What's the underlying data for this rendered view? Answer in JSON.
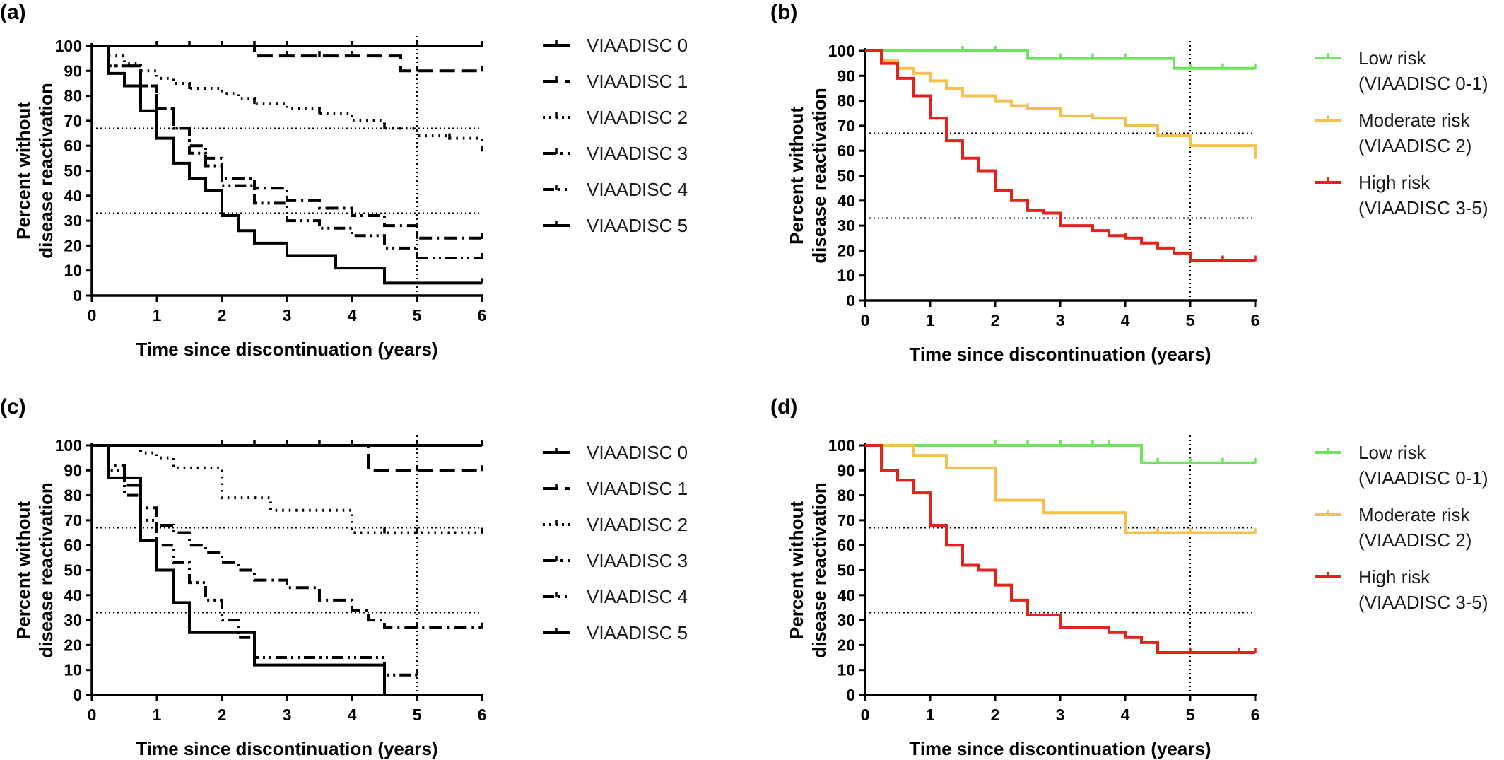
{
  "chart_data": [
    {
      "panel": "(a)",
      "type": "line",
      "style": "step",
      "xlabel": "Time since discontinuation (years)",
      "ylabel": [
        "Percent without",
        "disease reactivation"
      ],
      "xlim": [
        0,
        6
      ],
      "ylim": [
        0,
        100
      ],
      "xticks": [
        "0",
        "1",
        "2",
        "3",
        "4",
        "5",
        "6"
      ],
      "yticks": [
        "0",
        "10",
        "20",
        "30",
        "40",
        "50",
        "60",
        "70",
        "80",
        "90",
        "100"
      ],
      "reference_lines": {
        "horizontal": [
          67,
          33
        ],
        "vertical": [
          5
        ]
      },
      "grid": false,
      "legend": "right",
      "series": [
        {
          "name": "VIAADISC 0",
          "color": "#000000",
          "dash": "solid",
          "x": [
            0,
            6
          ],
          "y": [
            100,
            100
          ],
          "censor_x": [
            2.0,
            2.5,
            3.0,
            4.0,
            5.0,
            6.0
          ]
        },
        {
          "name": "VIAADISC 1",
          "color": "#000000",
          "dash": "dashed",
          "x": [
            0,
            2.5,
            4.75,
            6
          ],
          "y": [
            100,
            96,
            90,
            90
          ],
          "censor_x": [
            1.0,
            1.5,
            2.0,
            3.0,
            3.5,
            4.0,
            5.0,
            6.0
          ]
        },
        {
          "name": "VIAADISC 2",
          "color": "#000000",
          "dash": "dotted",
          "x": [
            0,
            0.25,
            0.5,
            0.75,
            1.0,
            1.25,
            1.5,
            2.0,
            2.25,
            2.5,
            3.0,
            3.5,
            4.0,
            4.5,
            5.0,
            5.5,
            6.0
          ],
          "y": [
            100,
            96,
            93,
            90,
            87,
            85,
            83,
            81,
            79,
            77,
            75,
            73,
            70,
            67,
            64,
            63,
            58
          ],
          "censor_x": [
            1.5,
            2.5,
            3.5,
            4.5,
            5.5,
            6.0
          ]
        },
        {
          "name": "VIAADISC 3",
          "color": "#000000",
          "dash": "dashdot",
          "x": [
            0,
            0.25,
            0.75,
            1.0,
            1.25,
            1.5,
            1.75,
            2.0,
            2.5,
            3.0,
            3.5,
            4.0,
            4.5,
            5.0,
            6.0
          ],
          "y": [
            100,
            92,
            84,
            75,
            67,
            60,
            55,
            47,
            43,
            38,
            35,
            32,
            28,
            23,
            23
          ],
          "censor_x": [
            3.0,
            4.0,
            5.0,
            6.0
          ]
        },
        {
          "name": "VIAADISC 4",
          "color": "#000000",
          "dash": "dashdotdot",
          "x": [
            0,
            0.25,
            0.75,
            1.0,
            1.25,
            1.5,
            1.75,
            2.0,
            2.5,
            3.0,
            3.5,
            4.0,
            4.5,
            5.0,
            6.0
          ],
          "y": [
            100,
            92,
            84,
            75,
            67,
            57,
            52,
            44,
            37,
            30,
            27,
            24,
            19,
            15,
            15
          ],
          "censor_x": [
            3.0,
            5.0,
            6.0
          ]
        },
        {
          "name": "VIAADISC 5",
          "color": "#000000",
          "dash": "solid",
          "x": [
            0,
            0.25,
            0.5,
            0.75,
            1.0,
            1.25,
            1.5,
            1.75,
            2.0,
            2.25,
            2.5,
            3.0,
            3.75,
            4.5,
            6.0
          ],
          "y": [
            100,
            89,
            84,
            74,
            63,
            53,
            47,
            42,
            32,
            26,
            21,
            16,
            11,
            5,
            5
          ],
          "censor_x": [
            6.0
          ]
        }
      ]
    },
    {
      "panel": "(b)",
      "type": "line",
      "style": "step",
      "xlabel": "Time since discontinuation (years)",
      "ylabel": [
        "Percent without",
        "disease reactivation"
      ],
      "xlim": [
        0,
        6
      ],
      "ylim": [
        0,
        100
      ],
      "xticks": [
        "0",
        "1",
        "2",
        "3",
        "4",
        "5",
        "6"
      ],
      "yticks": [
        "0",
        "10",
        "20",
        "30",
        "40",
        "50",
        "60",
        "70",
        "80",
        "90",
        "100"
      ],
      "reference_lines": {
        "horizontal": [
          67,
          33
        ],
        "vertical": [
          5
        ]
      },
      "grid": false,
      "legend": "right",
      "series": [
        {
          "name": [
            "Low risk",
            "(VIAADISC 0-1)"
          ],
          "color": "#6ee35b",
          "dash": "solid",
          "x": [
            0,
            2.5,
            4.75,
            6
          ],
          "y": [
            100,
            97,
            93,
            93
          ],
          "censor_x": [
            1.5,
            2.0,
            3.0,
            3.5,
            4.0,
            5.0,
            5.5,
            6.0
          ]
        },
        {
          "name": [
            "Moderate risk",
            "(VIAADISC 2)"
          ],
          "color": "#f5c04f",
          "dash": "solid",
          "x": [
            0,
            0.25,
            0.5,
            0.75,
            1.0,
            1.25,
            1.5,
            2.0,
            2.25,
            2.5,
            3.0,
            3.5,
            4.0,
            4.5,
            5.0,
            6.0
          ],
          "y": [
            100,
            96,
            93,
            91,
            88,
            85,
            82,
            80,
            78,
            77,
            74,
            73,
            70,
            66,
            62,
            57
          ],
          "censor_x": [
            2.5,
            3.0,
            3.5,
            4.0,
            5.0,
            6.0
          ]
        },
        {
          "name": [
            "High risk",
            "(VIAADISC 3-5)"
          ],
          "color": "#e3221c",
          "dash": "solid",
          "x": [
            0,
            0.25,
            0.5,
            0.75,
            1.0,
            1.25,
            1.5,
            1.75,
            2.0,
            2.25,
            2.5,
            2.75,
            3.0,
            3.5,
            3.75,
            4.0,
            4.25,
            4.5,
            4.75,
            5.0,
            6.0
          ],
          "y": [
            100,
            95,
            89,
            82,
            73,
            64,
            57,
            52,
            44,
            40,
            36,
            35,
            30,
            28,
            26,
            25,
            23,
            21,
            19,
            16,
            16
          ],
          "censor_x": [
            4.0,
            5.0,
            5.5,
            6.0
          ]
        }
      ]
    },
    {
      "panel": "(c)",
      "type": "line",
      "style": "step",
      "xlabel": "Time since discontinuation (years)",
      "ylabel": [
        "Percent without",
        "disease reactivation"
      ],
      "xlim": [
        0,
        6
      ],
      "ylim": [
        0,
        100
      ],
      "xticks": [
        "0",
        "1",
        "2",
        "3",
        "4",
        "5",
        "6"
      ],
      "yticks": [
        "0",
        "10",
        "20",
        "30",
        "40",
        "50",
        "60",
        "70",
        "80",
        "90",
        "100"
      ],
      "reference_lines": {
        "horizontal": [
          67,
          33
        ],
        "vertical": [
          5
        ]
      },
      "grid": false,
      "legend": "right",
      "series": [
        {
          "name": "VIAADISC 0",
          "color": "#000000",
          "dash": "solid",
          "x": [
            0,
            6
          ],
          "y": [
            100,
            100
          ],
          "censor_x": [
            2.0,
            2.5,
            3.0,
            3.5,
            4.0,
            5.0,
            6.0
          ]
        },
        {
          "name": "VIAADISC 1",
          "color": "#000000",
          "dash": "dashed",
          "x": [
            0,
            4.25,
            6
          ],
          "y": [
            100,
            90,
            90
          ],
          "censor_x": [
            5.0,
            6.0
          ]
        },
        {
          "name": "VIAADISC 2",
          "color": "#000000",
          "dash": "dotted",
          "x": [
            0,
            0.75,
            1.0,
            1.25,
            2.0,
            2.75,
            4.0,
            6.0
          ],
          "y": [
            100,
            97,
            95,
            91,
            79,
            74,
            65,
            65
          ],
          "censor_x": [
            4.5,
            5.0,
            6.0
          ]
        },
        {
          "name": "VIAADISC 3",
          "color": "#000000",
          "dash": "dashdot",
          "x": [
            0,
            0.25,
            0.5,
            0.75,
            1.0,
            1.25,
            1.5,
            1.75,
            2.0,
            2.25,
            2.5,
            3.0,
            3.5,
            4.0,
            4.25,
            4.5,
            6.0
          ],
          "y": [
            100,
            92,
            84,
            75,
            68,
            65,
            60,
            57,
            53,
            50,
            46,
            43,
            38,
            34,
            30,
            27,
            27
          ],
          "censor_x": [
            5.0,
            6.0
          ]
        },
        {
          "name": "VIAADISC 4",
          "color": "#000000",
          "dash": "dashdotdot",
          "x": [
            0,
            0.25,
            0.5,
            0.75,
            1.0,
            1.25,
            1.5,
            1.75,
            2.0,
            2.25,
            2.5,
            4.5,
            5.0
          ],
          "y": [
            100,
            90,
            80,
            70,
            60,
            53,
            45,
            38,
            30,
            23,
            15,
            8,
            8
          ],
          "censor_x": [
            5.0
          ]
        },
        {
          "name": "VIAADISC 5",
          "color": "#000000",
          "dash": "solid",
          "x": [
            0,
            0.25,
            0.75,
            1.0,
            1.25,
            1.5,
            2.5,
            4.5
          ],
          "y": [
            100,
            87,
            62,
            50,
            37,
            25,
            12,
            0
          ],
          "censor_x": []
        }
      ]
    },
    {
      "panel": "(d)",
      "type": "line",
      "style": "step",
      "xlabel": "Time since discontinuation (years)",
      "ylabel": [
        "Percent without",
        "disease reactivation"
      ],
      "xlim": [
        0,
        6
      ],
      "ylim": [
        0,
        100
      ],
      "xticks": [
        "0",
        "1",
        "2",
        "3",
        "4",
        "5",
        "6"
      ],
      "yticks": [
        "0",
        "10",
        "20",
        "30",
        "40",
        "50",
        "60",
        "70",
        "80",
        "90",
        "100"
      ],
      "reference_lines": {
        "horizontal": [
          67,
          33
        ],
        "vertical": [
          5
        ]
      },
      "grid": false,
      "legend": "right",
      "series": [
        {
          "name": [
            "Low risk",
            "(VIAADISC 0-1)"
          ],
          "color": "#6ee35b",
          "dash": "solid",
          "x": [
            0,
            4.25,
            6
          ],
          "y": [
            100,
            93,
            93
          ],
          "censor_x": [
            2.0,
            2.5,
            3.0,
            3.5,
            3.75,
            4.5,
            5.0,
            5.5,
            6.0
          ]
        },
        {
          "name": [
            "Moderate risk",
            "(VIAADISC 2)"
          ],
          "color": "#f5c04f",
          "dash": "solid",
          "x": [
            0,
            0.75,
            1.25,
            2.0,
            2.75,
            4.0,
            6.0
          ],
          "y": [
            100,
            96,
            91,
            78,
            73,
            65,
            65
          ],
          "censor_x": [
            4.5,
            5.0,
            6.0
          ]
        },
        {
          "name": [
            "High risk",
            "(VIAADISC 3-5)"
          ],
          "color": "#e3221c",
          "dash": "solid",
          "x": [
            0,
            0.25,
            0.5,
            0.75,
            1.0,
            1.25,
            1.5,
            1.75,
            2.0,
            2.25,
            2.5,
            3.0,
            3.75,
            4.0,
            4.25,
            4.5,
            6.0
          ],
          "y": [
            100,
            90,
            86,
            81,
            68,
            60,
            52,
            50,
            44,
            38,
            32,
            27,
            25,
            23,
            21,
            17,
            17
          ],
          "censor_x": [
            5.0,
            5.75,
            6.0
          ]
        }
      ]
    }
  ]
}
